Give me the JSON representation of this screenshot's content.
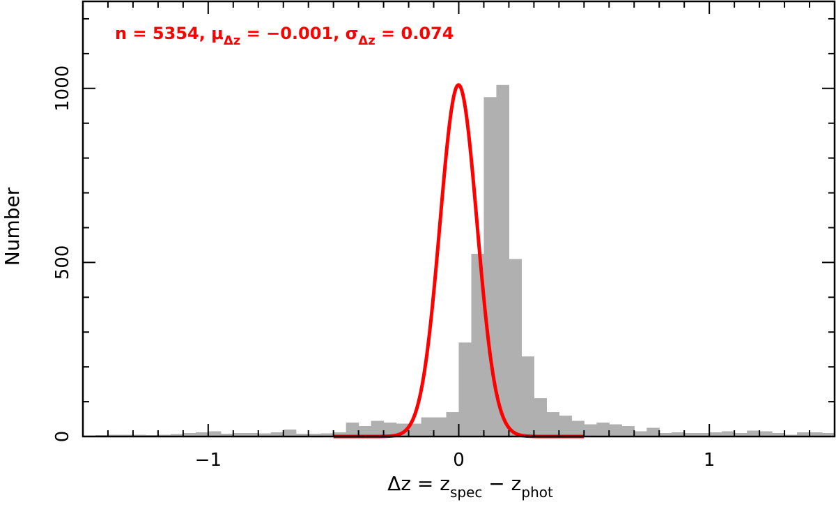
{
  "chart_data": {
    "type": "bar",
    "title": "",
    "xlabel": {
      "main": "Δz = z",
      "sub1": "spec",
      "mid": " − z",
      "sub2": "phot"
    },
    "ylabel": "Number",
    "xlim": [
      -1.5,
      1.5
    ],
    "ylim": [
      0,
      1250
    ],
    "x_ticks": [
      -1,
      0,
      1
    ],
    "x_tick_labels": [
      "−1",
      "0",
      "1"
    ],
    "x_minor_step": 0.1,
    "y_ticks": [
      0,
      500,
      1000
    ],
    "y_tick_labels": [
      "0",
      "500",
      "1000"
    ],
    "y_minor_step": 100,
    "grid": false,
    "histogram": {
      "name": "",
      "color": "#b0b0b0",
      "bin_width": 0.05,
      "bin_start": -1.5,
      "counts": [
        3,
        4,
        5,
        5,
        5,
        4,
        5,
        7,
        10,
        12,
        15,
        8,
        10,
        10,
        9,
        12,
        20,
        8,
        8,
        9,
        12,
        40,
        30,
        45,
        40,
        37,
        37,
        55,
        55,
        70,
        270,
        525,
        975,
        1010,
        510,
        230,
        110,
        70,
        60,
        45,
        35,
        40,
        35,
        30,
        15,
        25,
        10,
        12,
        10,
        10,
        12,
        15,
        10,
        17,
        15,
        10,
        5,
        12,
        12,
        10
      ]
    },
    "fit_curve": {
      "name": "",
      "type": "gaussian",
      "color": "#ff0000",
      "mu": -0.001,
      "sigma": 0.074,
      "peak": 1010,
      "x_range": [
        -0.5,
        0.5
      ]
    },
    "annotation": {
      "part1": "n = 5354, μ",
      "sub1": "Δz",
      "part2": " = −0.001, σ",
      "sub2": "Δz",
      "part3": " = 0.074"
    }
  }
}
